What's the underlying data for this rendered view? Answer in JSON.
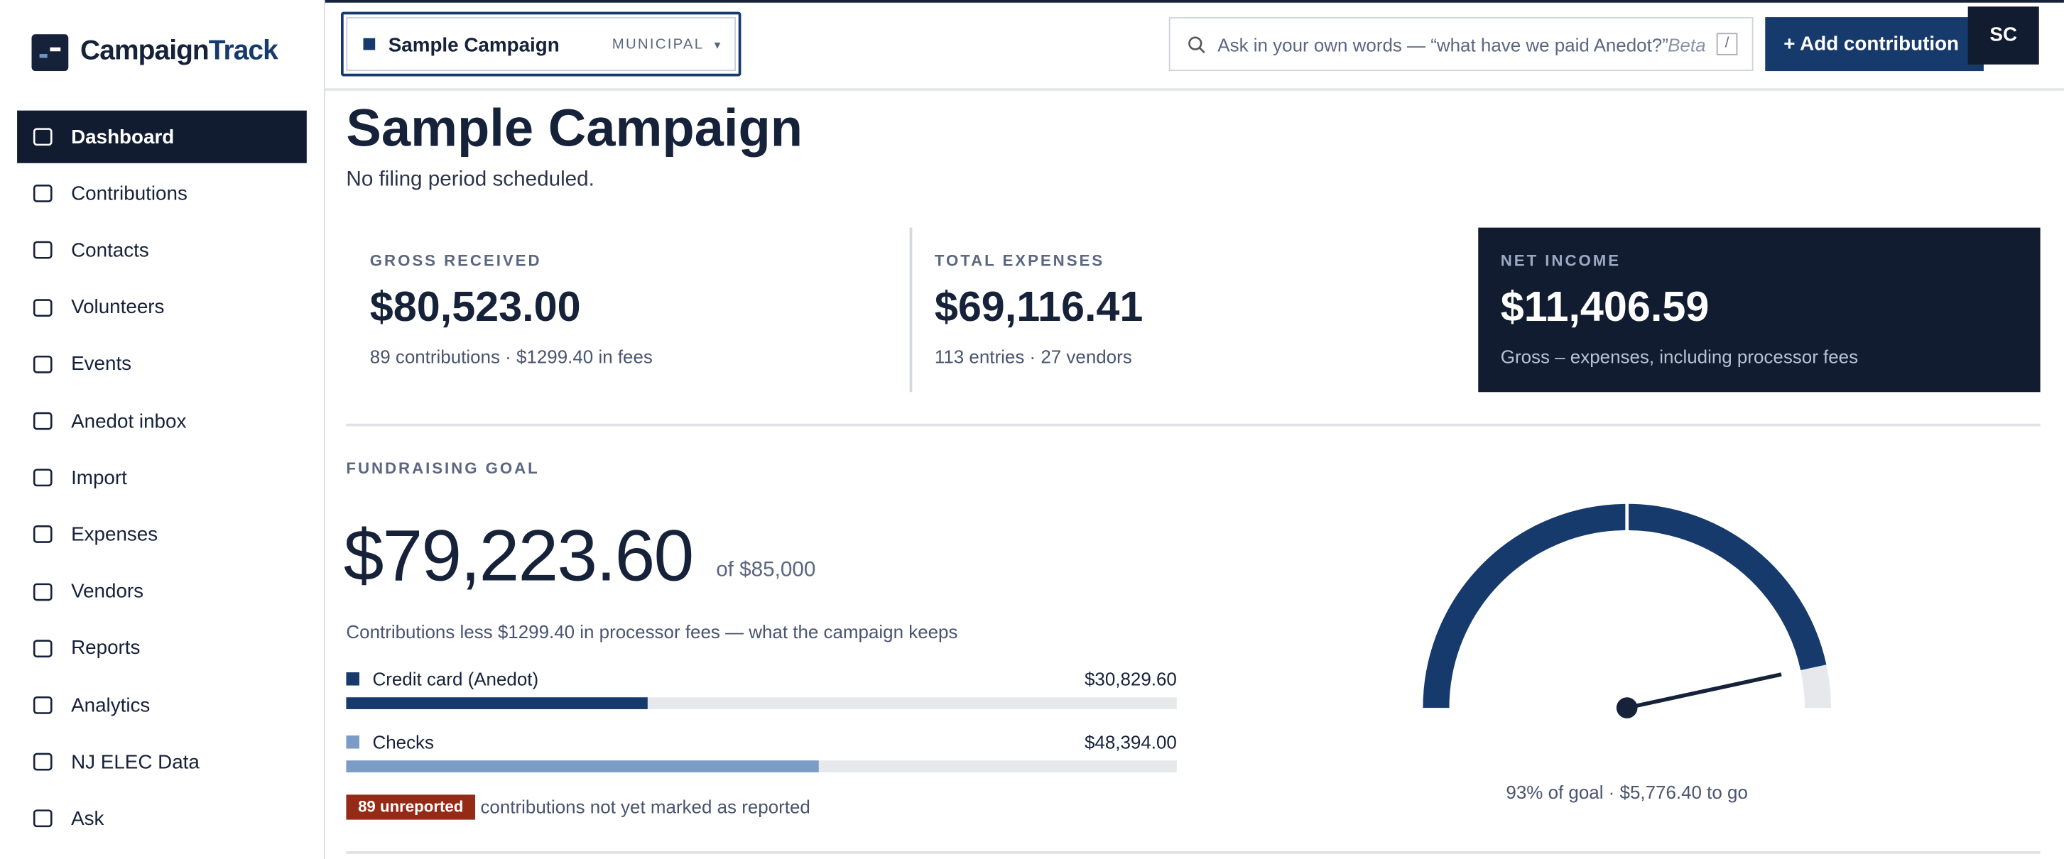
{
  "sidebar": {
    "brand_a": "Campaign",
    "brand_b": "Track",
    "nav": [
      "Dashboard",
      "Contributions",
      "Contacts",
      "Volunteers",
      "Events",
      "Anedot inbox",
      "Import",
      "Expenses",
      "Vendors",
      "Reports",
      "Analytics",
      "NJ ELEC Data",
      "Ask"
    ],
    "active": 0
  },
  "topbar": {
    "campaign": "Sample Campaign",
    "campaign_type": "MUNICIPAL",
    "search_placeholder": "Ask in your own words — “what have we paid Anedot?”",
    "search_badge": "Beta",
    "search_key": "/",
    "add_button": "+ Add contribution",
    "avatar": "SC"
  },
  "header": {
    "title": "Sample Campaign",
    "subtitle": "No filing period scheduled."
  },
  "stats": [
    {
      "label": "GROSS RECEIVED",
      "value": "$80,523.00",
      "note": "89 contributions · $1299.40 in fees"
    },
    {
      "label": "TOTAL EXPENSES",
      "value": "$69,116.41",
      "note": "113 entries · 27 vendors"
    },
    {
      "label": "NET INCOME",
      "value": "$11,406.59",
      "note": "Gross – expenses, including processor fees"
    }
  ],
  "goal": {
    "heading": "FUNDRAISING GOAL",
    "raised": {
      "value": 79223.6,
      "label": "$79,223.60"
    },
    "target": {
      "value": 85000,
      "label": "of $85,000"
    },
    "caption": "Contributions less $1299.40 in processor fees — what the campaign keeps",
    "sources": [
      {
        "name": "Credit card (Anedot)",
        "value": 30829.6,
        "label": "$30,829.60",
        "color": "#173a6c"
      },
      {
        "name": "Checks",
        "value": 48394.0,
        "label": "$48,394.00",
        "color": "#7b9cc7"
      }
    ],
    "badge": "89 unreported",
    "badge_note": "contributions not yet marked as reported",
    "gauge_note": "93% of goal · $5,776.40 to go"
  }
}
